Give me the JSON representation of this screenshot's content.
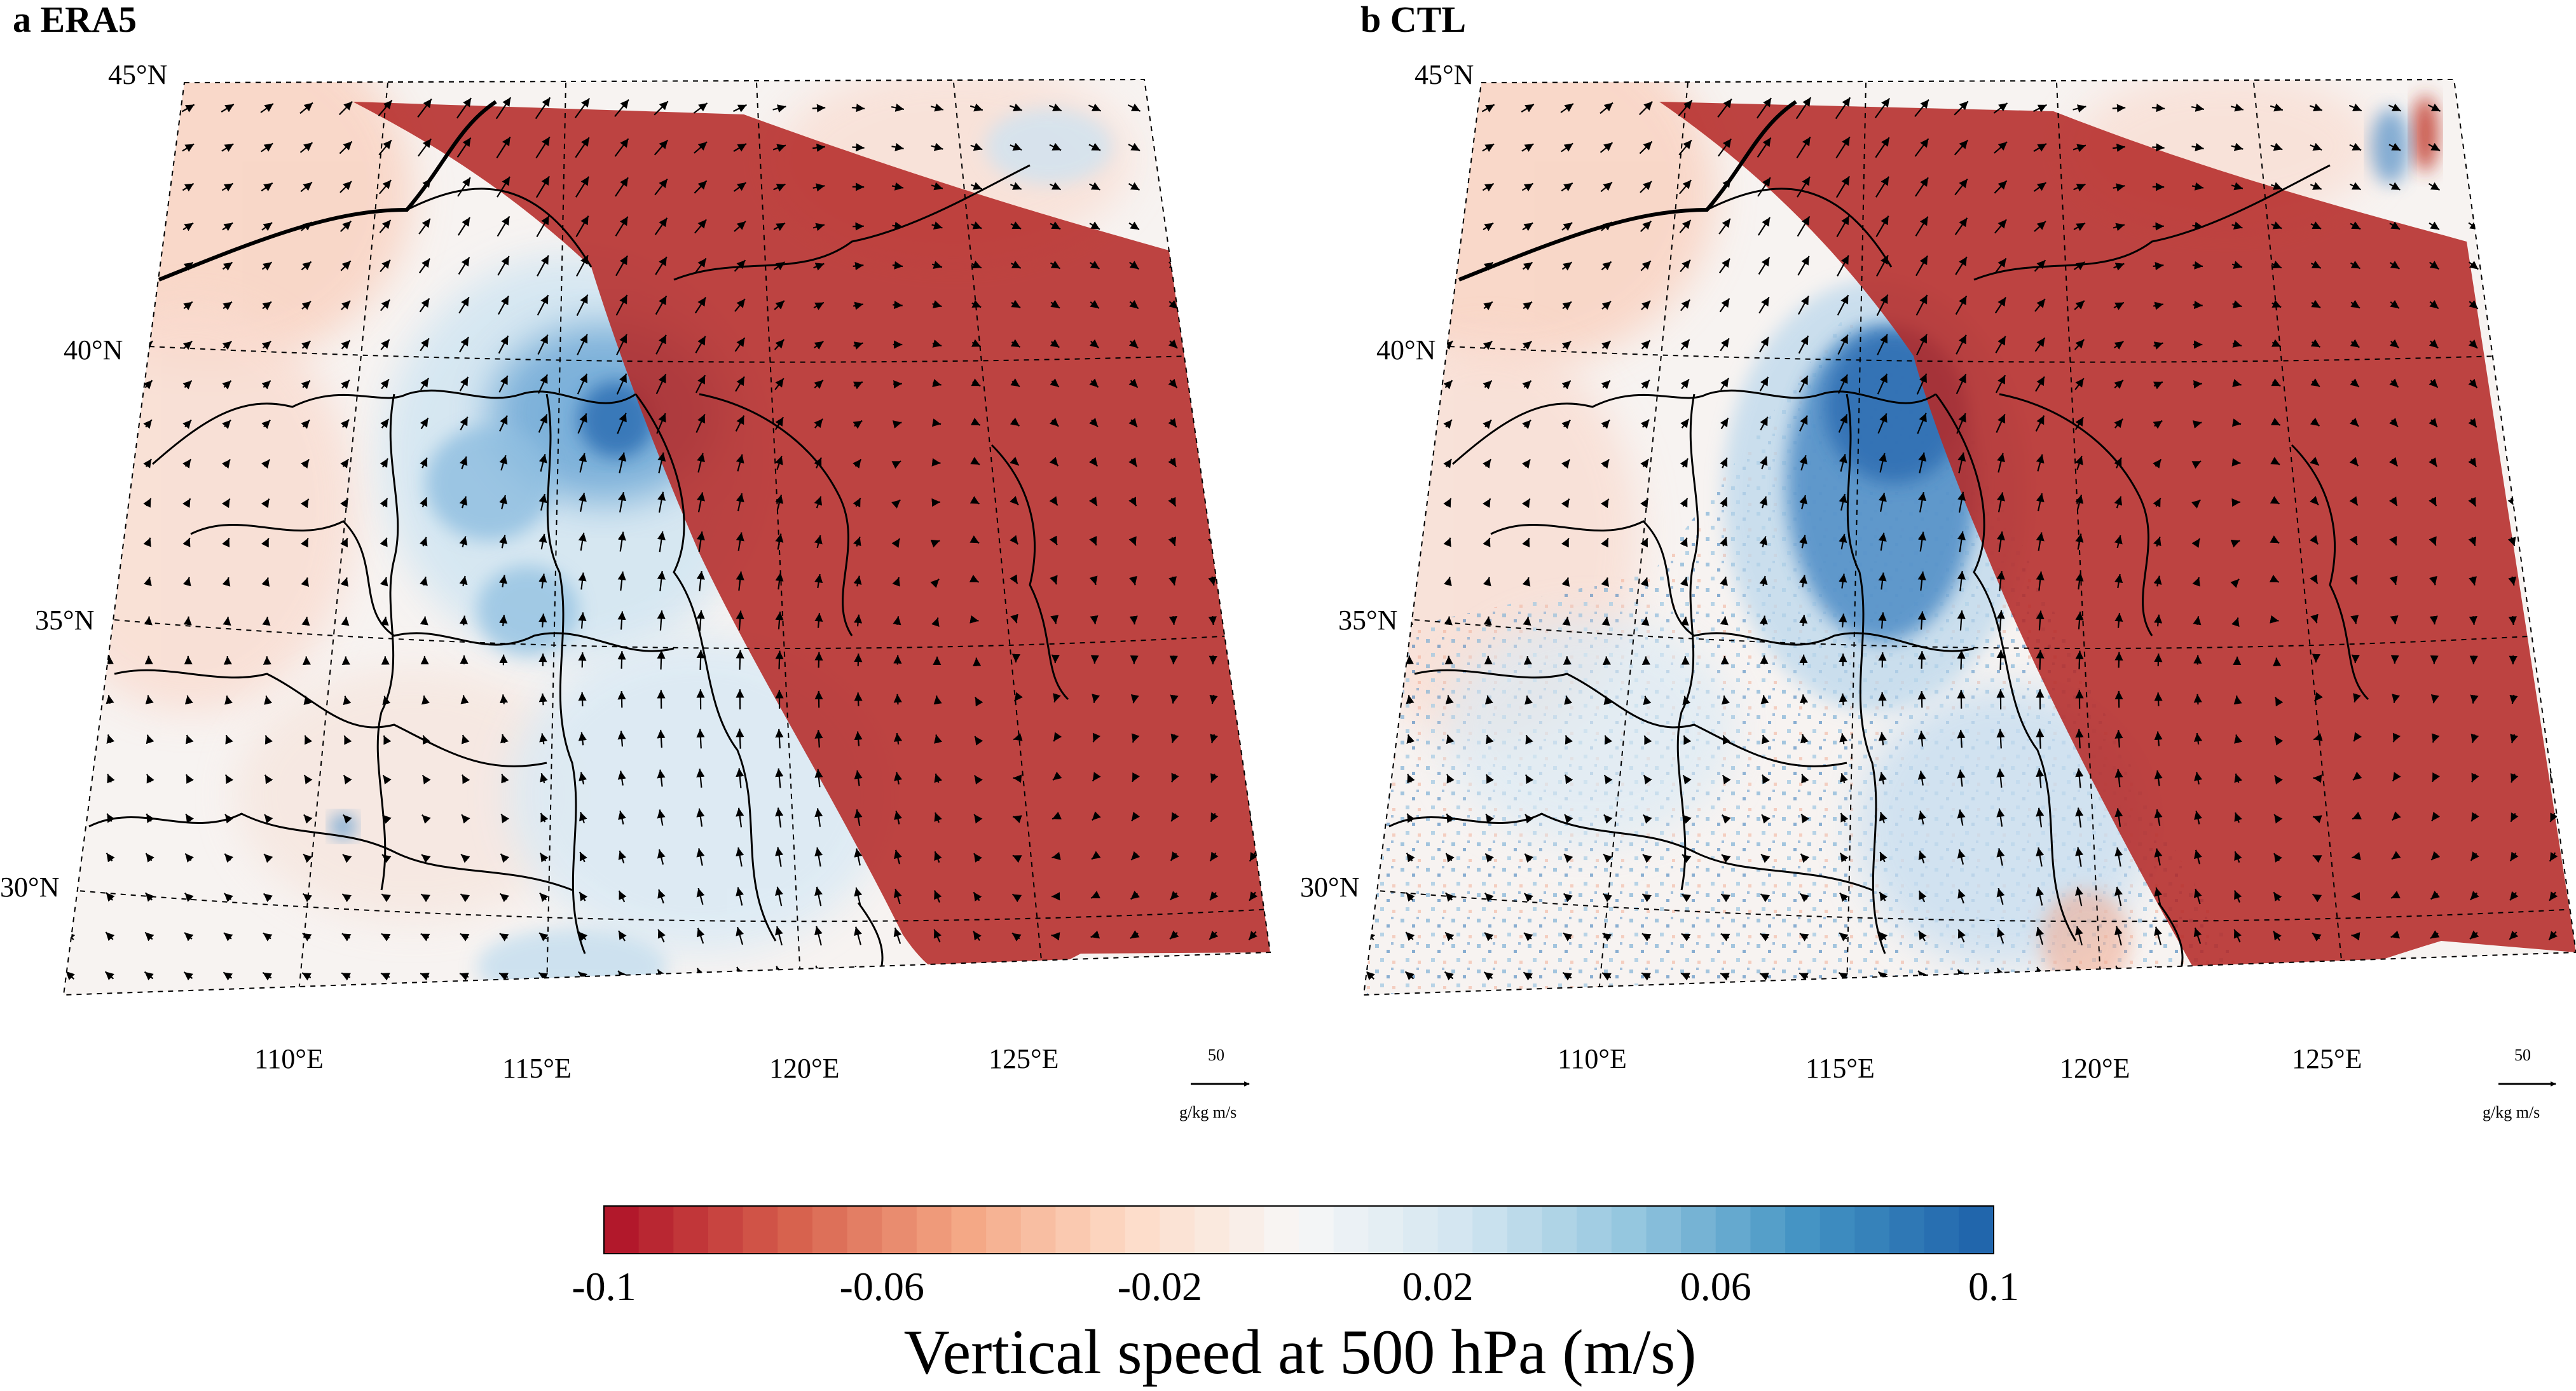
{
  "panels": [
    {
      "id": "a",
      "title": "a ERA5",
      "lat_labels": [
        "45°N",
        "40°N",
        "35°N",
        "30°N"
      ],
      "lon_labels": [
        "110°E",
        "115°E",
        "120°E",
        "125°E"
      ],
      "ref_vector": {
        "value": "50",
        "unit": "g/kg m/s"
      }
    },
    {
      "id": "b",
      "title": "b CTL",
      "lat_labels": [
        "45°N",
        "40°N",
        "35°N",
        "30°N"
      ],
      "lon_labels": [
        "110°E",
        "115°E",
        "120°E",
        "125°E"
      ],
      "ref_vector": {
        "value": "50",
        "unit": "g/kg m/s"
      }
    }
  ],
  "colorbar": {
    "title": "Vertical speed at 500 hPa (m/s)",
    "min": -0.1,
    "max": 0.1,
    "levels": 40,
    "tick_labels": [
      "-0.1",
      "-0.06",
      "-0.02",
      "0.02",
      "0.06",
      "0.1"
    ],
    "colors": [
      "#b2182b",
      "#d6604d",
      "#f4a582",
      "#fddbc7",
      "#f7f7f7",
      "#d1e5f0",
      "#92c5de",
      "#4393c3",
      "#2166ac"
    ]
  },
  "colors": {
    "mask": "#b52a28",
    "arrow": "#000000",
    "border": "#000000",
    "grid": "#000000"
  }
}
